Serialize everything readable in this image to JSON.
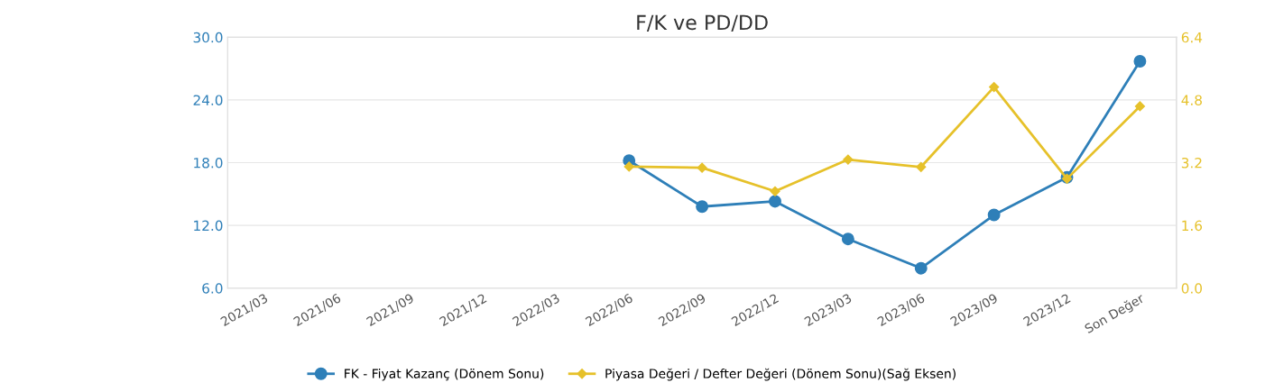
{
  "chart_data": {
    "type": "line",
    "title": "F/K ve PD/DD",
    "categories": [
      "2021/03",
      "2021/06",
      "2021/09",
      "2021/12",
      "2022/03",
      "2022/06",
      "2022/09",
      "2022/12",
      "2023/03",
      "2023/06",
      "2023/09",
      "2023/12",
      "Son Değer"
    ],
    "series": [
      {
        "name": "FK - Fiyat Kazanç (Dönem Sonu)",
        "color": "#2e7fb8",
        "marker": "circle",
        "values": [
          null,
          null,
          null,
          null,
          null,
          18.2,
          13.8,
          14.3,
          10.7,
          7.9,
          13.0,
          16.6,
          27.7
        ]
      },
      {
        "name": "Piyasa Değeri / Defter Değeri (Dönem Sonu)(Sağ Eksen)",
        "color": "#e6c12a",
        "marker": "diamond",
        "axis": "y2",
        "values": [
          null,
          null,
          null,
          null,
          null,
          3.1,
          3.07,
          2.47,
          3.28,
          3.09,
          5.13,
          2.79,
          4.64
        ]
      }
    ],
    "ylim": [
      6,
      30
    ],
    "yticks": [
      {
        "value": 6,
        "label": "6.0"
      },
      {
        "value": 12,
        "label": "12.0"
      },
      {
        "value": 18,
        "label": "18.0"
      },
      {
        "value": 24,
        "label": "24.0"
      },
      {
        "value": 30,
        "label": "30.0"
      }
    ],
    "y2lim": [
      0,
      6.4
    ],
    "y2ticks": [
      {
        "value": 0,
        "label": "0.0"
      },
      {
        "value": 1.6,
        "label": "1.6"
      },
      {
        "value": 3.2,
        "label": "3.2"
      },
      {
        "value": 4.8,
        "label": "4.8"
      },
      {
        "value": 6.4,
        "label": "6.4"
      }
    ],
    "grid": "y",
    "legend": "bottom"
  }
}
